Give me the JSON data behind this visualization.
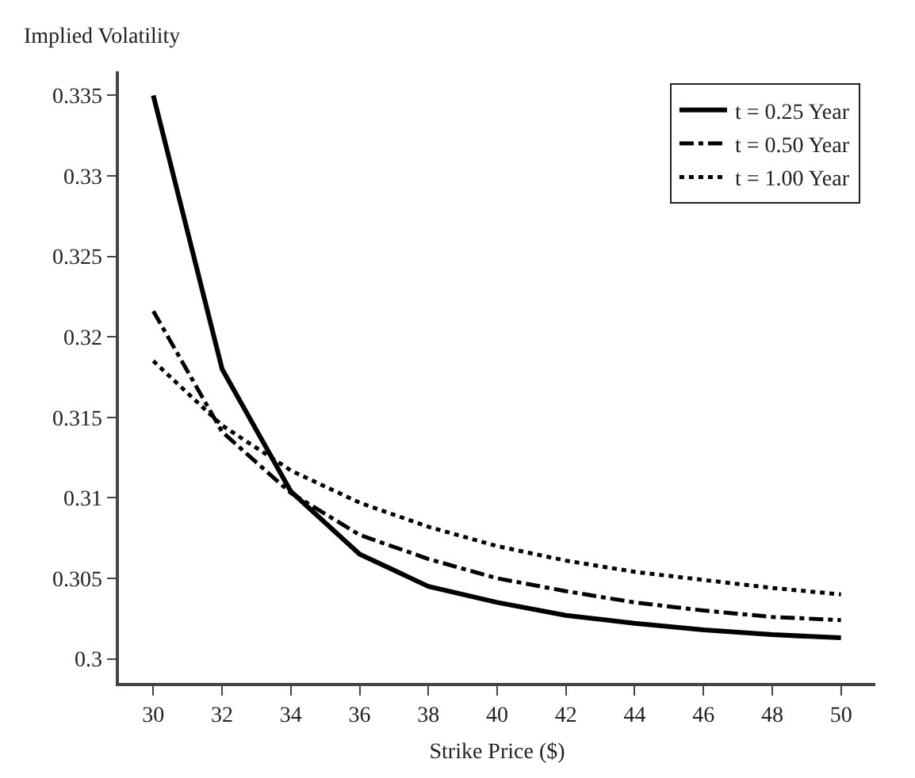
{
  "chart_data": {
    "type": "line",
    "xlabel": "Strike Price ($)",
    "ylabel": "Implied Volatility",
    "x": [
      30,
      32,
      34,
      36,
      38,
      40,
      42,
      44,
      46,
      48,
      50
    ],
    "series": [
      {
        "name": "t = 0.25 Year",
        "color": "#000000",
        "line_style": "solid",
        "values": [
          0.335,
          0.318,
          0.3104,
          0.3065,
          0.3045,
          0.3035,
          0.3027,
          0.3022,
          0.3018,
          0.3015,
          0.3013
        ]
      },
      {
        "name": "t = 0.50 Year",
        "color": "#000000",
        "line_style": "dashdot",
        "values": [
          0.3216,
          0.3141,
          0.3103,
          0.3077,
          0.3062,
          0.305,
          0.3042,
          0.3035,
          0.303,
          0.3026,
          0.3024
        ]
      },
      {
        "name": "t = 1.00 Year",
        "color": "#000000",
        "line_style": "dotted",
        "values": [
          0.3185,
          0.3145,
          0.3117,
          0.3097,
          0.3082,
          0.307,
          0.3061,
          0.3054,
          0.3049,
          0.3044,
          0.304
        ]
      }
    ],
    "xlim": [
      29,
      51
    ],
    "xticks": [
      30,
      32,
      34,
      36,
      38,
      40,
      42,
      44,
      46,
      48,
      50
    ],
    "ylim": [
      0.2985,
      0.3365
    ],
    "yticks": [
      0.3,
      0.305,
      0.31,
      0.315,
      0.32,
      0.325,
      0.33,
      0.335
    ],
    "grid": false,
    "legend": "top right",
    "marker": "none"
  }
}
